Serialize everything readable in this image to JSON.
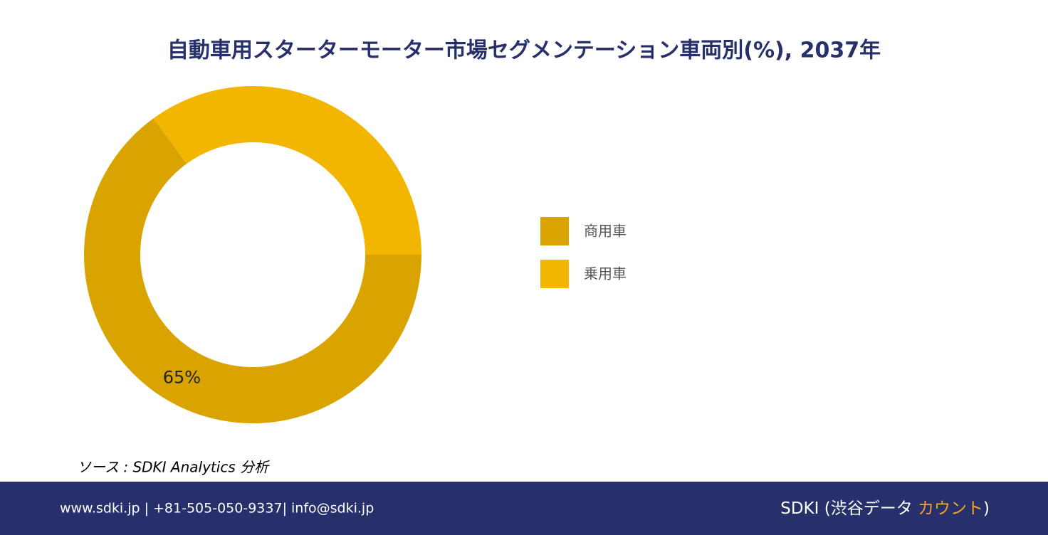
{
  "chart_data": {
    "type": "donut",
    "title": "自動車用スターターモーター市場セグメンテーション車両別(%), 2037年",
    "categories": [
      "商用車",
      "乗用車"
    ],
    "values": [
      65,
      35
    ],
    "value_labels": [
      "65%",
      null
    ],
    "colors": [
      "#daa400",
      "#f3b600"
    ]
  },
  "source": "ソース : SDKI Analytics 分析",
  "footer": {
    "contact": "www.sdki.jp | +81-505-050-9337| info@sdki.jp",
    "brand": [
      "SDKI (渋谷データ ",
      "カウント",
      ")"
    ]
  }
}
